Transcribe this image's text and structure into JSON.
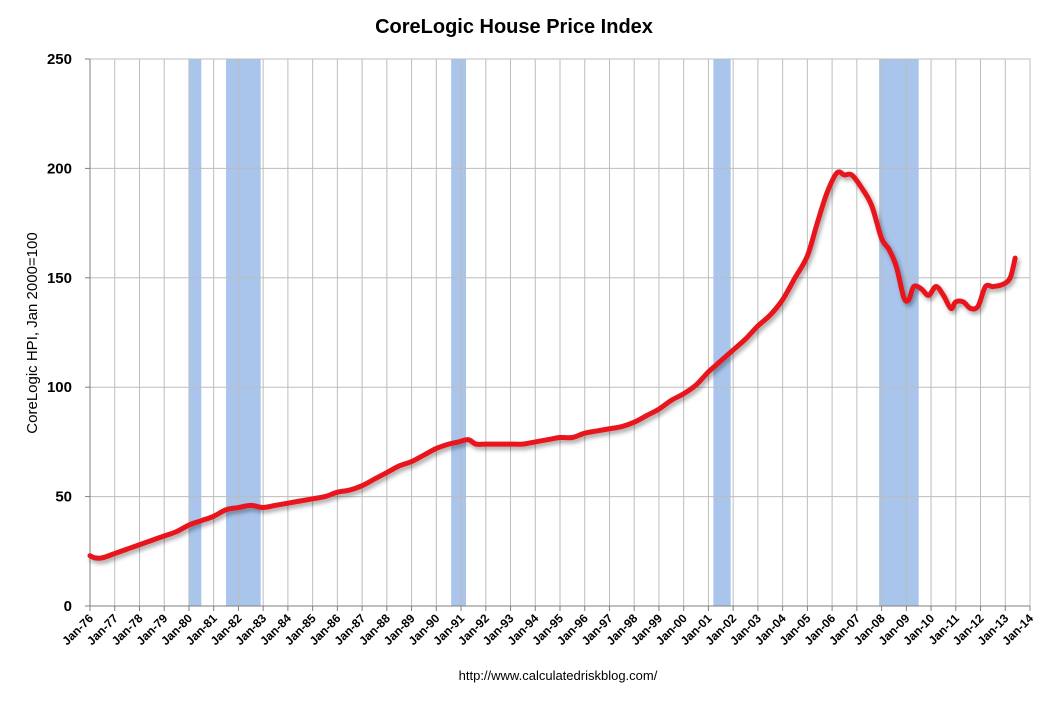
{
  "chart_data": {
    "type": "line",
    "title": "CoreLogic House Price Index",
    "xlabel": "",
    "ylabel": "CoreLogic HPI, Jan 2000=100",
    "ylim": [
      0,
      250
    ],
    "yticks": [
      0,
      50,
      100,
      150,
      200,
      250
    ],
    "xlim": [
      1976.0,
      2014.0
    ],
    "x_tick_labels": [
      "Jan-76",
      "Jan-77",
      "Jan-78",
      "Jan-79",
      "Jan-80",
      "Jan-81",
      "Jan-82",
      "Jan-83",
      "Jan-84",
      "Jan-85",
      "Jan-86",
      "Jan-87",
      "Jan-88",
      "Jan-89",
      "Jan-90",
      "Jan-91",
      "Jan-92",
      "Jan-93",
      "Jan-94",
      "Jan-95",
      "Jan-96",
      "Jan-97",
      "Jan-98",
      "Jan-99",
      "Jan-00",
      "Jan-01",
      "Jan-02",
      "Jan-03",
      "Jan-04",
      "Jan-05",
      "Jan-06",
      "Jan-07",
      "Jan-08",
      "Jan-09",
      "Jan-10",
      "Jan-11",
      "Jan-12",
      "Jan-13",
      "Jan-14"
    ],
    "grid": true,
    "source": "http://www.calculatedriskblog.com/",
    "colors": {
      "line": "#e8141e",
      "recession": "#a9c5ec",
      "grid": "#bdbdbd"
    },
    "recessions": [
      {
        "start": 1980.0,
        "end": 1980.5
      },
      {
        "start": 1981.5,
        "end": 1982.9
      },
      {
        "start": 1990.6,
        "end": 1991.2
      },
      {
        "start": 2001.2,
        "end": 2001.9
      },
      {
        "start": 2007.9,
        "end": 2009.5
      }
    ],
    "series": [
      {
        "x": [
          1976.0,
          1976.2,
          1976.5,
          1977.0,
          1977.5,
          1978.0,
          1978.5,
          1979.0,
          1979.5,
          1980.0,
          1980.5,
          1981.0,
          1981.5,
          1982.0,
          1982.5,
          1983.0,
          1983.5,
          1984.0,
          1984.5,
          1985.0,
          1985.5,
          1986.0,
          1986.5,
          1987.0,
          1987.5,
          1988.0,
          1988.5,
          1989.0,
          1989.5,
          1990.0,
          1990.5,
          1990.9,
          1991.3,
          1991.6,
          1992.0,
          1992.5,
          1993.0,
          1993.5,
          1994.0,
          1994.5,
          1995.0,
          1995.5,
          1996.0,
          1996.5,
          1997.0,
          1997.5,
          1998.0,
          1998.5,
          1999.0,
          1999.5,
          2000.0,
          2000.5,
          2001.0,
          2001.3,
          2001.6,
          2002.0,
          2002.5,
          2003.0,
          2003.5,
          2004.0,
          2004.5,
          2005.0,
          2005.4,
          2005.8,
          2006.2,
          2006.5,
          2006.8,
          2007.2,
          2007.6,
          2008.0,
          2008.3,
          2008.6,
          2008.9,
          2009.1,
          2009.3,
          2009.6,
          2009.9,
          2010.2,
          2010.5,
          2010.8,
          2011.0,
          2011.3,
          2011.6,
          2011.9,
          2012.2,
          2012.5,
          2012.9,
          2013.2,
          2013.4
        ],
        "values": [
          23,
          22,
          22,
          24,
          26,
          28,
          30,
          32,
          34,
          37,
          39,
          41,
          44,
          45,
          46,
          45,
          46,
          47,
          48,
          49,
          50,
          52,
          53,
          55,
          58,
          61,
          64,
          66,
          69,
          72,
          74,
          75,
          76,
          74,
          74,
          74,
          74,
          74,
          75,
          76,
          77,
          77,
          79,
          80,
          81,
          82,
          84,
          87,
          90,
          94,
          97,
          101,
          107,
          110,
          113,
          117,
          122,
          128,
          133,
          140,
          150,
          160,
          175,
          189,
          198,
          197,
          197,
          191,
          183,
          168,
          163,
          155,
          141,
          140,
          146,
          145,
          142,
          146,
          142,
          136,
          139,
          139,
          136,
          137,
          146,
          146,
          147,
          150,
          159
        ]
      }
    ]
  }
}
